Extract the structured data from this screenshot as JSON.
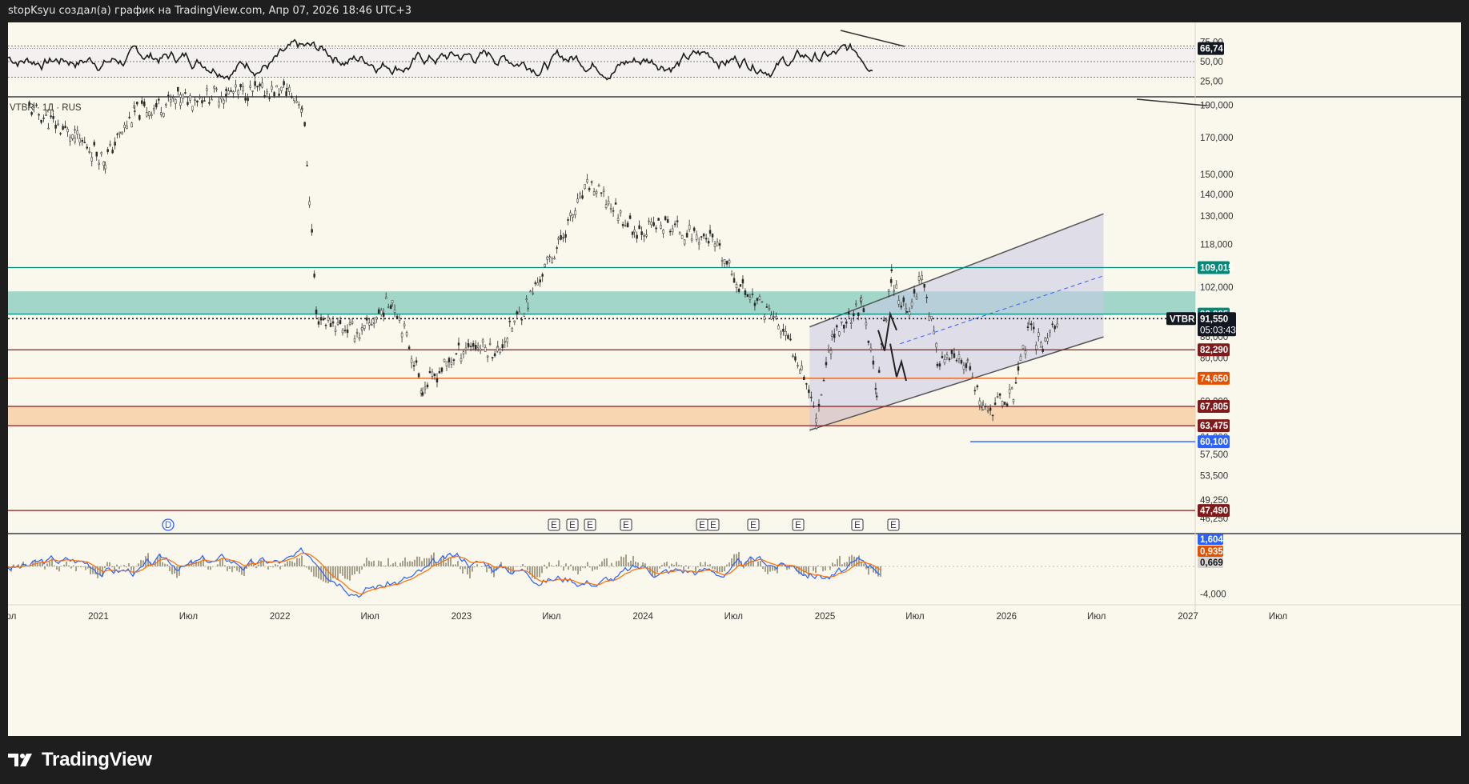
{
  "header": {
    "title": "stopKsyu создал(а) график на TradingView.com, Апр 07, 2026 18:46 UTC+3"
  },
  "footer": {
    "brand": "TradingView"
  },
  "colors": {
    "background": "#faf7ec",
    "candle": "#2b2b2b",
    "teal": "#00897b",
    "teal_fill": "#7cc7bb",
    "red_line": "#8b1a1a",
    "orange_line": "#e65100",
    "orange_fill": "#f6c79a",
    "blue_line": "#2962ff",
    "channel_fill": "#c8cbe6",
    "macd_blue": "#2962ff",
    "macd_orange": "#ff6d00",
    "hist": "#a7a08a",
    "tag_teal": "#00897b",
    "tag_red": "#801a1a",
    "tag_orange": "#e65100",
    "tag_blue": "#2962ff",
    "tag_black": "#131722",
    "tag_gray": "#d6d4cc"
  },
  "symbol": {
    "label": "VTBR · 1Д · RUS"
  },
  "rsi_panel": {
    "y_ticks": [
      "75,00",
      "50,00",
      "25,00"
    ],
    "current_value": "66,74",
    "ylim": [
      10,
      90
    ],
    "levels": [
      70,
      50,
      30
    ]
  },
  "price_panel": {
    "y_ticks": [
      "190,000",
      "170,000",
      "150,000",
      "140,000",
      "130,000",
      "118,000",
      "102,000",
      "86,000",
      "80,000",
      "69,000",
      "61,000",
      "57,500",
      "53,500",
      "49,250",
      "46,250"
    ],
    "ylim": [
      44,
      195
    ],
    "scale": "log",
    "price_tags": [
      {
        "value": "109,015",
        "kind": "teal"
      },
      {
        "value": "92,985",
        "kind": "teal"
      },
      {
        "value": "82,290",
        "kind": "red"
      },
      {
        "value": "74,650",
        "kind": "orange"
      },
      {
        "value": "67,805",
        "kind": "red"
      },
      {
        "value": "63,475",
        "kind": "red"
      },
      {
        "value": "60,100",
        "kind": "blue"
      },
      {
        "value": "47,490",
        "kind": "red"
      }
    ],
    "last_price": {
      "symbol": "VTBR",
      "value": "91,550",
      "countdown": "05:03:43"
    },
    "zones": [
      {
        "name": "resistance-zone",
        "from": 92.985,
        "to": 100.5,
        "color": "teal"
      },
      {
        "name": "support-zone",
        "from": 63.475,
        "to": 67.805,
        "color": "orange"
      }
    ],
    "events": [
      "D",
      "E",
      "E",
      "E",
      "E",
      "E",
      "E",
      "E",
      "E",
      "E",
      "E"
    ]
  },
  "macd_panel": {
    "y_ticks": [
      "-4,000"
    ],
    "tags": [
      {
        "value": "1,604",
        "kind": "blue"
      },
      {
        "value": "0,935",
        "kind": "orange"
      },
      {
        "value": "0,669",
        "kind": "gray"
      }
    ]
  },
  "time_axis": {
    "labels": [
      "Июл",
      "2021",
      "Июл",
      "2022",
      "Июл",
      "2023",
      "Июл",
      "2024",
      "Июл",
      "2025",
      "Июл",
      "2026",
      "Июл",
      "2027",
      "Июл"
    ]
  },
  "chart_data": {
    "type": "line",
    "title": "VTBR · 1Д · RUS",
    "x": [
      "2020-08",
      "2020-11",
      "2021-01",
      "2021-03",
      "2021-06",
      "2021-09",
      "2022-01",
      "2022-02",
      "2022-03",
      "2022-06",
      "2022-08",
      "2022-10",
      "2023-01",
      "2023-03",
      "2023-05",
      "2023-07",
      "2023-09",
      "2023-12",
      "2024-02",
      "2024-05",
      "2024-07",
      "2024-09",
      "2024-11",
      "2024-12",
      "2025-01",
      "2025-03",
      "2025-04",
      "2025-05",
      "2025-06",
      "2025-07",
      "2025-08",
      "2025-10",
      "2025-11",
      "2026-01",
      "2026-02",
      "2026-03",
      "2026-04"
    ],
    "series": [
      {
        "values": [
          188,
          170,
          158,
          185,
          194,
          198,
          200,
          190,
          92,
          87,
          98,
          72,
          84,
          82,
          97,
          118,
          145,
          124,
          126,
          120,
          102,
          93,
          78,
          65,
          86,
          96,
          72,
          106,
          92,
          107,
          80,
          78,
          66,
          71,
          88,
          84,
          91.55
        ]
      }
    ],
    "ylabel": "",
    "ylim": [
      44,
      195
    ],
    "scale": "log",
    "hlines": [
      109.015,
      92.985,
      82.29,
      74.65,
      67.805,
      63.475,
      60.1,
      47.49
    ],
    "last": 91.55
  }
}
